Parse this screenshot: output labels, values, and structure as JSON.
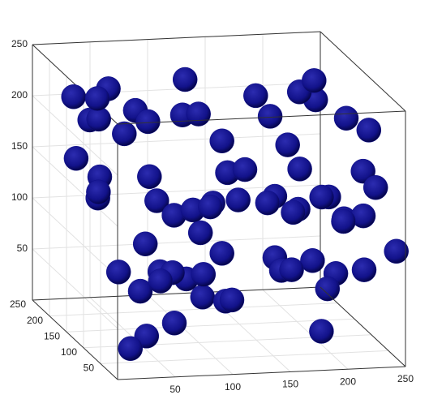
{
  "chart_data": {
    "type": "scatter3d",
    "color": "#10108a",
    "xlim": [
      0,
      250
    ],
    "ylim": [
      0,
      250
    ],
    "zlim": [
      0,
      250
    ],
    "xticks": [
      50,
      100,
      150,
      200,
      250
    ],
    "yticks": [
      50,
      100,
      150,
      200,
      250
    ],
    "zticks": [
      50,
      100,
      150,
      200,
      250
    ],
    "grid": true,
    "x": [
      20,
      60,
      110,
      160,
      210,
      240,
      35,
      85,
      135,
      185,
      230,
      15,
      70,
      120,
      175,
      220,
      45,
      95,
      145,
      195,
      240,
      25,
      80,
      130,
      180,
      225,
      55,
      105,
      155,
      205,
      10,
      65,
      115,
      165,
      215,
      40,
      90,
      140,
      190,
      235,
      30,
      75,
      125,
      170,
      220,
      50,
      100,
      150,
      200,
      245,
      20,
      60,
      110,
      160,
      210,
      35,
      85,
      135,
      185,
      230,
      15,
      70,
      120,
      175,
      225,
      45,
      95,
      145,
      195,
      240
    ],
    "y": [
      30,
      200,
      120,
      60,
      180,
      90,
      240,
      15,
      150,
      220,
      40,
      110,
      170,
      70,
      130,
      20,
      210,
      100,
      50,
      160,
      230,
      140,
      80,
      190,
      10,
      120,
      60,
      240,
      170,
      30,
      90,
      200,
      15,
      110,
      150,
      50,
      180,
      230,
      70,
      130,
      20,
      160,
      100,
      40,
      210,
      80,
      140,
      190,
      60,
      10,
      120,
      230,
      170,
      30,
      90,
      200,
      50,
      150,
      110,
      20,
      180,
      70,
      240,
      130,
      40,
      100,
      160,
      210,
      60,
      140
    ],
    "z": [
      20,
      40,
      60,
      80,
      100,
      120,
      140,
      160,
      180,
      200,
      220,
      240,
      30,
      50,
      70,
      90,
      110,
      130,
      150,
      170,
      190,
      210,
      230,
      15,
      35,
      55,
      75,
      95,
      115,
      135,
      155,
      175,
      195,
      215,
      235,
      25,
      45,
      65,
      85,
      105,
      125,
      145,
      165,
      185,
      205,
      225,
      245,
      10,
      60,
      110,
      160,
      210,
      40,
      90,
      140,
      190,
      240,
      70,
      120,
      170,
      220,
      30,
      80,
      130,
      180,
      230,
      50,
      100,
      150,
      200
    ]
  }
}
